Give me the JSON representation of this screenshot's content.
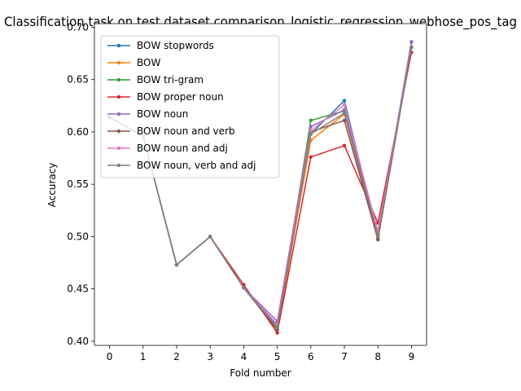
{
  "chart_data": {
    "type": "line",
    "title": "Classification task on test dataset comparison_logistic_regression_webhose_pos_tag",
    "xlabel": "Fold number",
    "ylabel": "Accuracy",
    "x": [
      0,
      1,
      2,
      3,
      4,
      5,
      6,
      7,
      8,
      9
    ],
    "xlim": [
      -0.45,
      9.45
    ],
    "ylim": [
      0.396,
      0.7035
    ],
    "xticks": [
      0,
      1,
      2,
      3,
      4,
      5,
      6,
      7,
      8,
      9
    ],
    "yticks": [
      0.4,
      0.45,
      0.5,
      0.55,
      0.6,
      0.65,
      0.7
    ],
    "ytick_labels": [
      "0.40",
      "0.45",
      "0.50",
      "0.55",
      "0.60",
      "0.65",
      "0.70"
    ],
    "grid": false,
    "legend_position": "top-left",
    "series": [
      {
        "name": "BOW stopwords",
        "color": "#1f77b4",
        "values": [
          0.614,
          0.596,
          0.473,
          0.5,
          0.451,
          0.415,
          0.598,
          0.63,
          0.5,
          0.686
        ]
      },
      {
        "name": "BOW",
        "color": "#ff7f0e",
        "values": [
          0.614,
          0.596,
          0.473,
          0.5,
          0.451,
          0.411,
          0.592,
          0.617,
          0.498,
          0.681
        ]
      },
      {
        "name": "BOW tri-gram",
        "color": "#2ca02c",
        "values": [
          0.614,
          0.596,
          0.473,
          0.5,
          0.451,
          0.411,
          0.611,
          0.62,
          0.498,
          0.681
        ]
      },
      {
        "name": "BOW proper noun",
        "color": "#d62728",
        "values": [
          0.614,
          0.596,
          0.473,
          0.5,
          0.454,
          0.408,
          0.576,
          0.587,
          0.513,
          0.676
        ]
      },
      {
        "name": "BOW noun",
        "color": "#9467bd",
        "values": [
          0.614,
          0.596,
          0.473,
          0.5,
          0.451,
          0.419,
          0.605,
          0.621,
          0.502,
          0.686
        ]
      },
      {
        "name": "BOW noun and verb",
        "color": "#8c564b",
        "values": [
          0.614,
          0.596,
          0.473,
          0.5,
          0.451,
          0.411,
          0.6,
          0.611,
          0.497,
          0.681
        ]
      },
      {
        "name": "BOW noun and adj",
        "color": "#e377c2",
        "values": [
          0.614,
          0.596,
          0.473,
          0.5,
          0.451,
          0.416,
          0.601,
          0.626,
          0.505,
          0.681
        ]
      },
      {
        "name": "BOW noun, verb and adj",
        "color": "#7f7f7f",
        "values": [
          0.614,
          0.596,
          0.473,
          0.5,
          0.451,
          0.413,
          0.598,
          0.618,
          0.5,
          0.681
        ]
      }
    ]
  }
}
